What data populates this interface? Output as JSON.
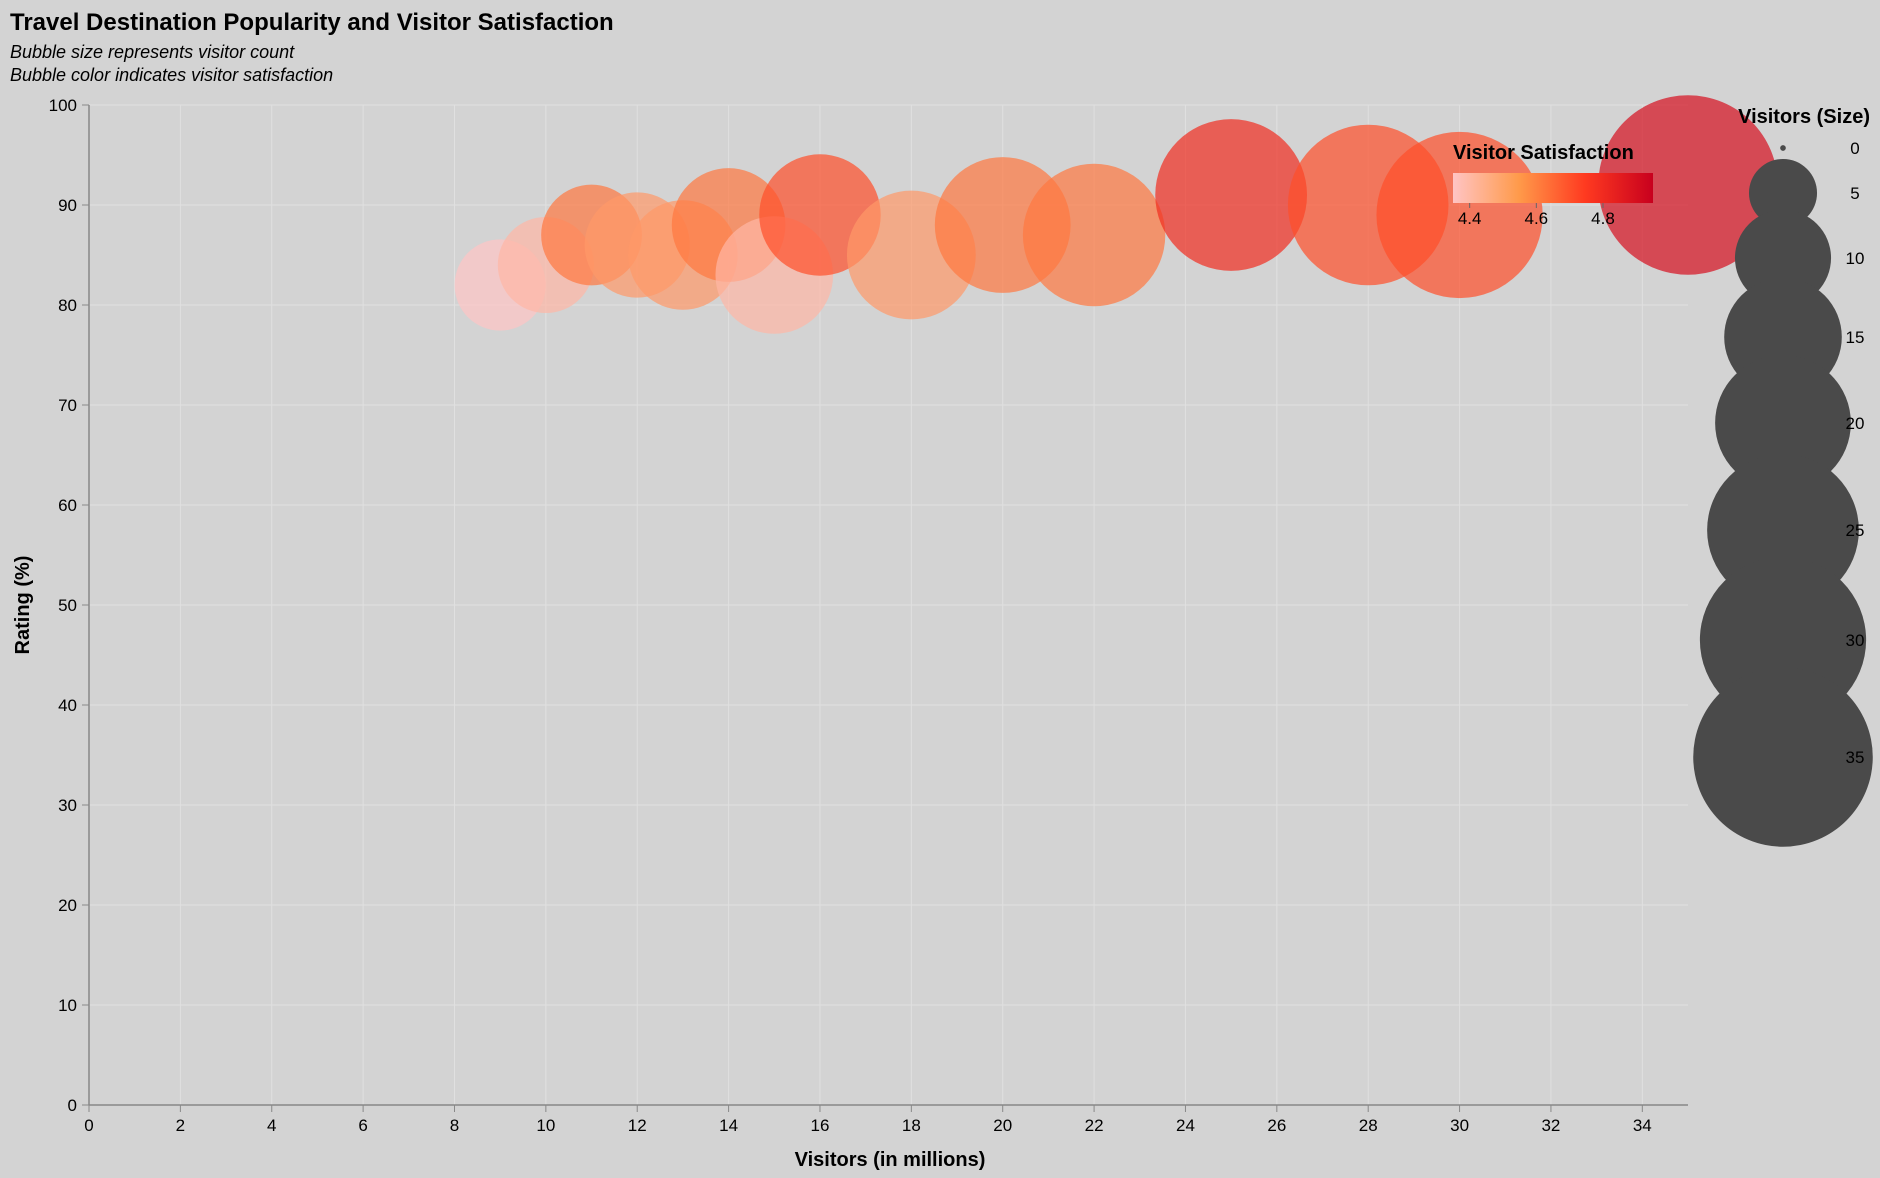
{
  "chart_data": {
    "type": "scatter",
    "title": "Travel Destination Popularity and Visitor Satisfaction",
    "subtitle": [
      "Bubble size represents visitor count",
      "Bubble color indicates visitor satisfaction"
    ],
    "xlabel": "Visitors (in millions)",
    "ylabel": "Rating (%)",
    "xlim": [
      0,
      35
    ],
    "ylim": [
      0,
      100
    ],
    "x_ticks": [
      0,
      2,
      4,
      6,
      8,
      10,
      12,
      14,
      16,
      18,
      20,
      22,
      24,
      26,
      28,
      30,
      32,
      34
    ],
    "y_ticks": [
      0,
      10,
      20,
      30,
      40,
      50,
      60,
      70,
      80,
      90,
      100
    ],
    "grid": true,
    "points": [
      {
        "visitors": 9,
        "rating": 82,
        "satisfaction": 4.3
      },
      {
        "visitors": 10,
        "rating": 84,
        "satisfaction": 4.4
      },
      {
        "visitors": 11,
        "rating": 87,
        "satisfaction": 4.6
      },
      {
        "visitors": 12,
        "rating": 86,
        "satisfaction": 4.5
      },
      {
        "visitors": 13,
        "rating": 85,
        "satisfaction": 4.5
      },
      {
        "visitors": 14,
        "rating": 88,
        "satisfaction": 4.6
      },
      {
        "visitors": 15,
        "rating": 83,
        "satisfaction": 4.4
      },
      {
        "visitors": 16,
        "rating": 89,
        "satisfaction": 4.7
      },
      {
        "visitors": 18,
        "rating": 85,
        "satisfaction": 4.5
      },
      {
        "visitors": 20,
        "rating": 88,
        "satisfaction": 4.6
      },
      {
        "visitors": 22,
        "rating": 87,
        "satisfaction": 4.6
      },
      {
        "visitors": 25,
        "rating": 91,
        "satisfaction": 4.8
      },
      {
        "visitors": 28,
        "rating": 90,
        "satisfaction": 4.7
      },
      {
        "visitors": 30,
        "rating": 89,
        "satisfaction": 4.7
      },
      {
        "visitors": 35,
        "rating": 92,
        "satisfaction": 4.9
      }
    ],
    "color_legend": {
      "title": "Visitor Satisfaction",
      "domain": [
        4.35,
        4.95
      ],
      "ticks": [
        4.4,
        4.6,
        4.8
      ],
      "colors": [
        "#ffc4c4",
        "#ff8b4a",
        "#ff3a20",
        "#c8001e"
      ]
    },
    "size_legend": {
      "title": "Visitors (Size)",
      "values": [
        0,
        5,
        10,
        15,
        20,
        25,
        30,
        35
      ]
    },
    "bubble_opacity": 0.7,
    "legend_bubble_color": "#4a4a4a"
  }
}
